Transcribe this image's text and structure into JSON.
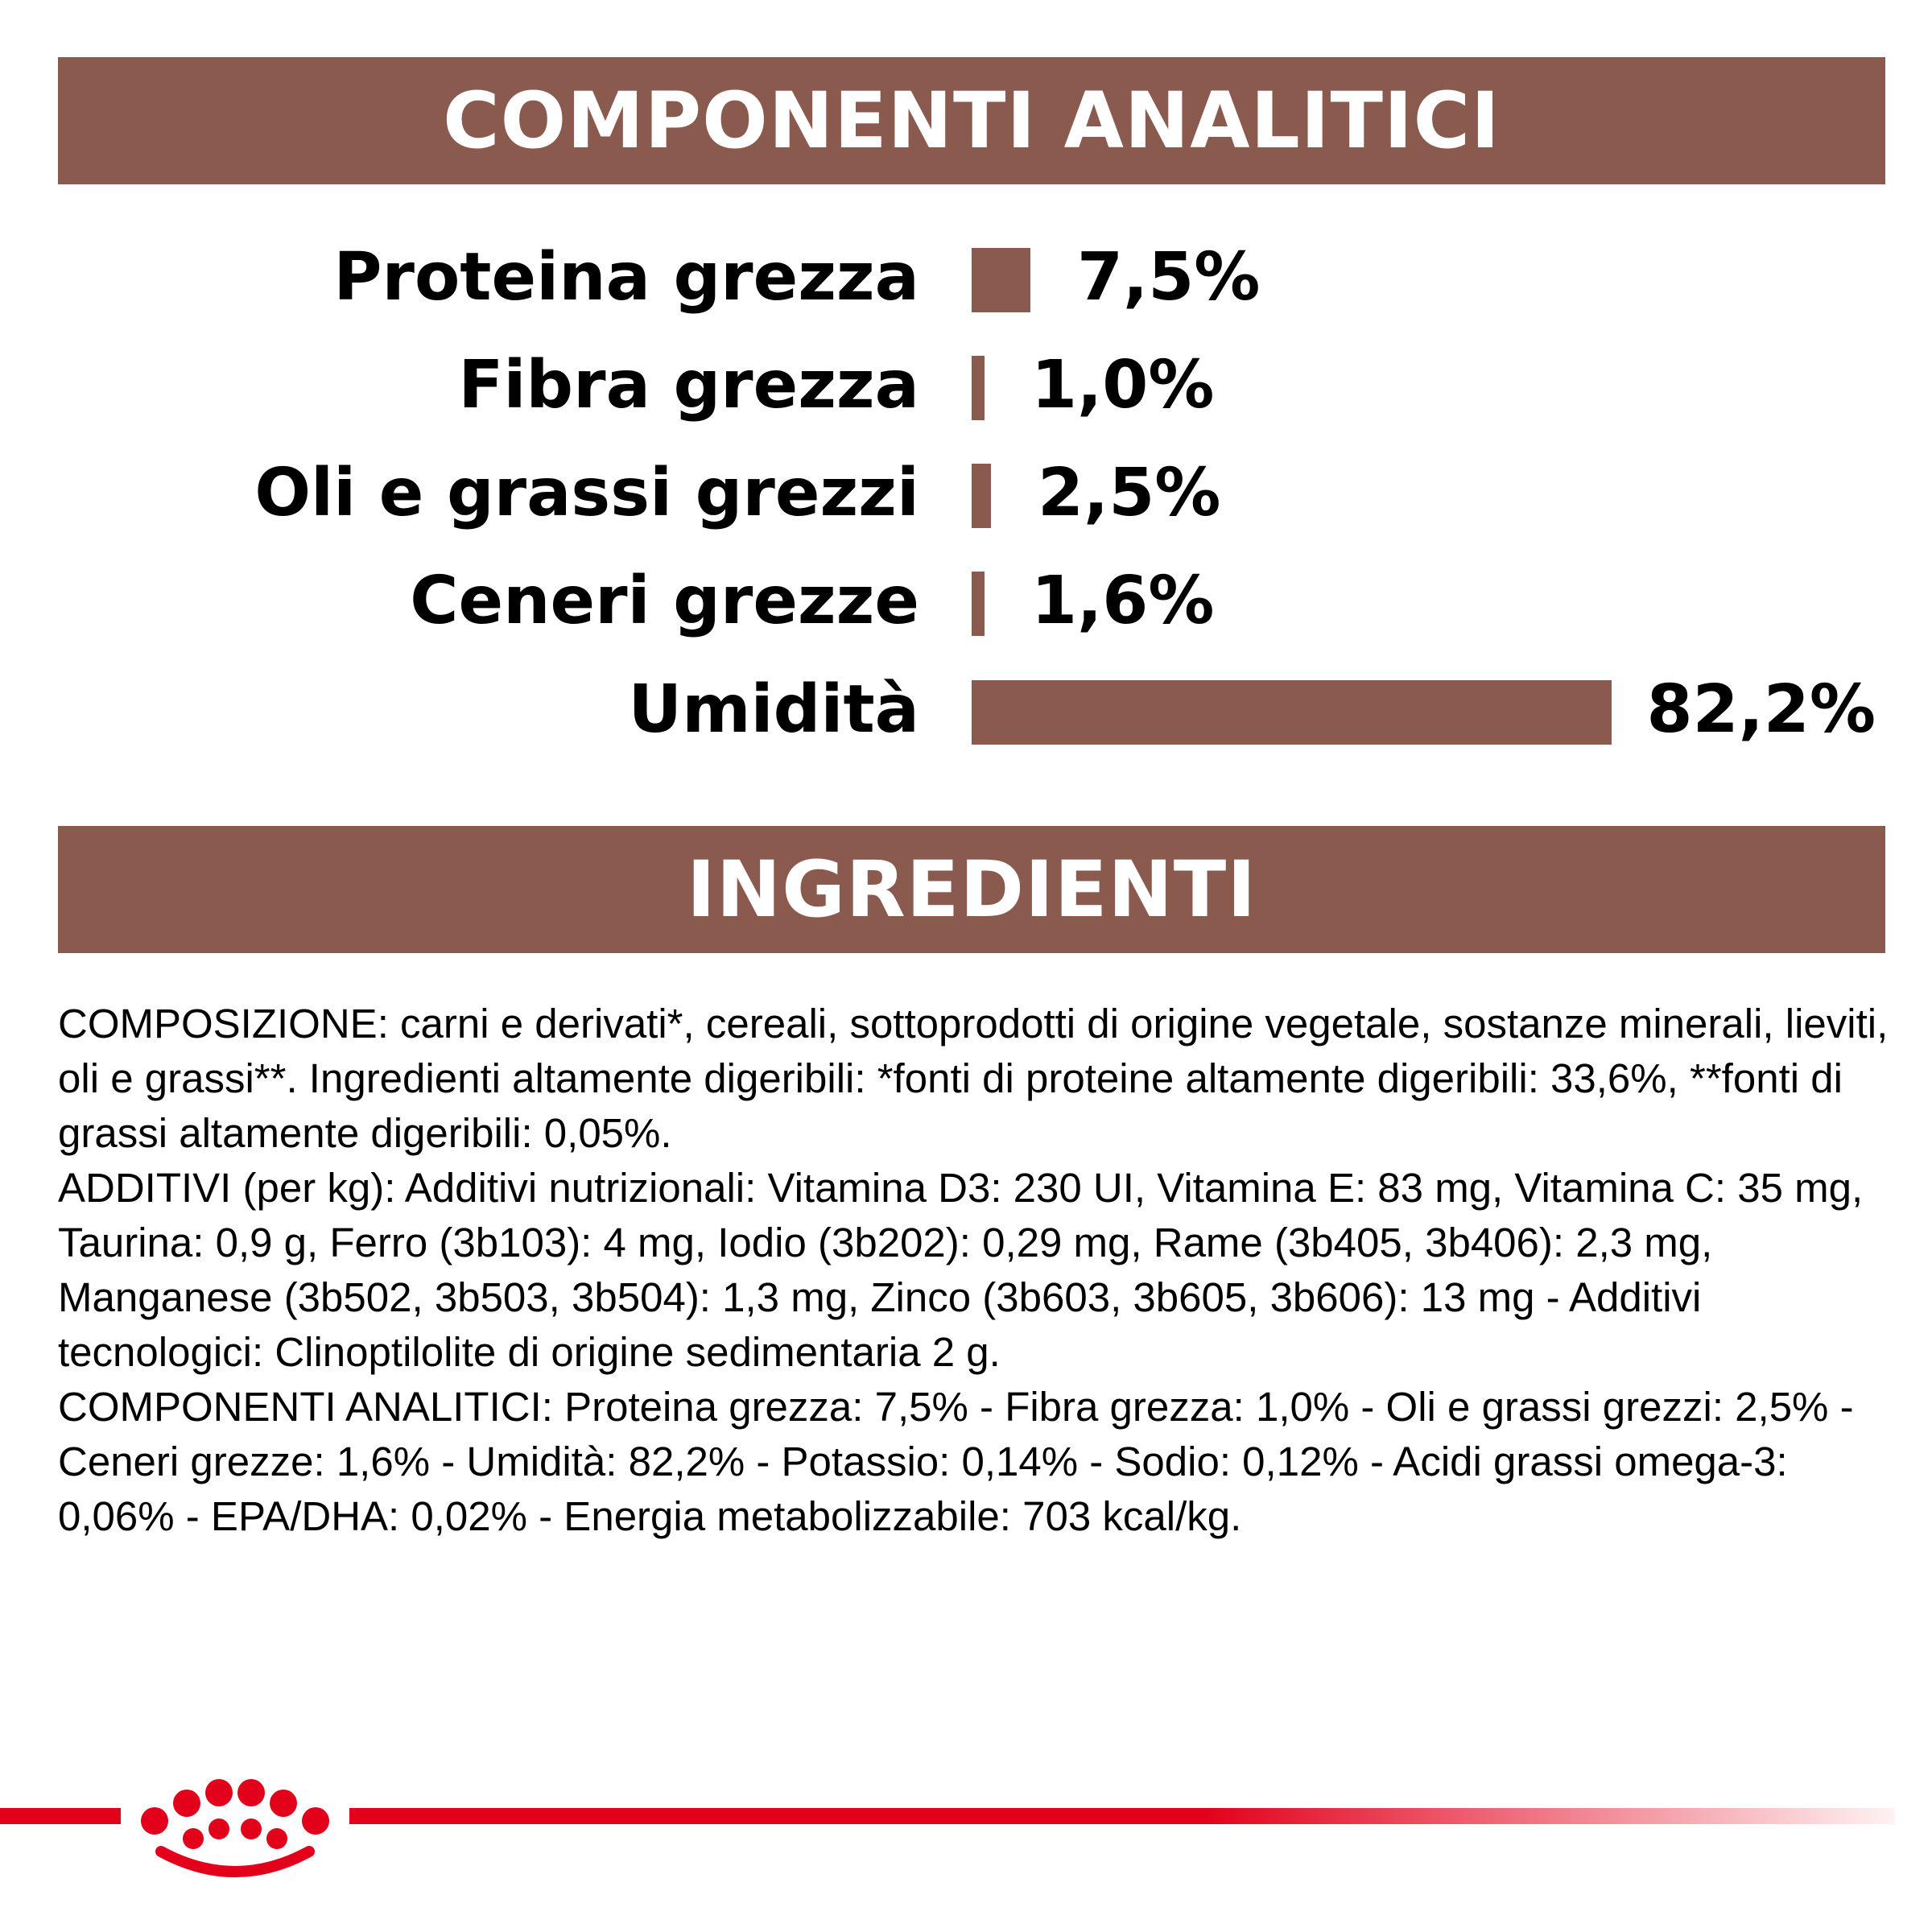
{
  "analytic": {
    "title": "COMPONENTI ANALITICI",
    "rows": [
      {
        "label": "Proteina grezza",
        "value": "7,5%",
        "percent": 7.5
      },
      {
        "label": "Fibra grezza",
        "value": "1,0%",
        "percent": 1.0
      },
      {
        "label": "Oli e grassi grezzi",
        "value": "2,5%",
        "percent": 2.5
      },
      {
        "label": "Ceneri grezze",
        "value": "1,6%",
        "percent": 1.6
      },
      {
        "label": "Umidità",
        "value": "82,2%",
        "percent": 82.2
      }
    ]
  },
  "ingredients": {
    "title": "INGREDIENTI",
    "paragraphs": [
      "COMPOSIZIONE: carni e derivati*, cereali, sottoprodotti di origine vegetale, sostanze minerali, lieviti, oli e grassi**. Ingredienti altamente digeribili: *fonti di proteine altamente digeribili: 33,6%, **fonti di grassi altamente digeribili: 0,05%.",
      "ADDITIVI (per kg): Additivi nutrizionali: Vitamina D3: 230 UI, Vitamina E: 83 mg, Vitamina C: 35 mg, Taurina: 0,9 g, Ferro (3b103): 4 mg, Iodio (3b202): 0,29 mg, Rame (3b405, 3b406): 2,3 mg, Manganese (3b502, 3b503, 3b504): 1,3 mg, Zinco (3b603, 3b605, 3b606): 13 mg - Additivi tecnologici: Clinoptilolite di origine sedimentaria 2 g.",
      "COMPONENTI ANALITICI: Proteina grezza: 7,5% - Fibra grezza: 1,0% - Oli e grassi grezzi: 2,5% - Ceneri grezze: 1,6% - Umidità: 82,2% - Potassio: 0,14% - Sodio: 0,12% - Acidi grassi omega-3: 0,06% - EPA/DHA: 0,02% - Energia metabolizzabile: 703 kcal/kg."
    ]
  },
  "colors": {
    "banner": "#8b5a4f",
    "brand_red": "#e2001a"
  },
  "icons": {
    "logo": "royal-canin-crown-logo"
  }
}
